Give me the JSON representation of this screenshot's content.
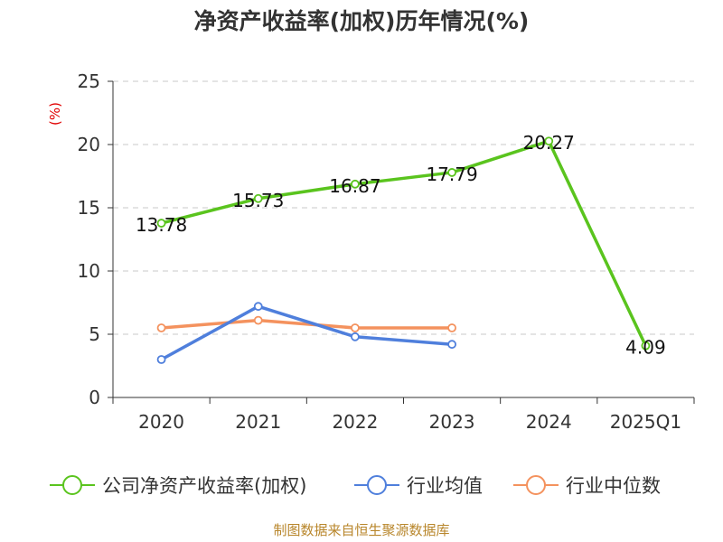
{
  "chart_data": {
    "type": "line",
    "title": "净资产收益率(加权)历年情况(%)",
    "ylabel": "(%)",
    "xlabel": "",
    "categories": [
      "2020",
      "2021",
      "2022",
      "2023",
      "2024",
      "2025Q1"
    ],
    "ylim": [
      0,
      25
    ],
    "yticks": [
      0,
      5,
      10,
      15,
      20,
      25
    ],
    "grid": true,
    "legend_position": "bottom",
    "series": [
      {
        "name": "公司净资产收益率(加权)",
        "color": "#5ac41e",
        "values": [
          13.78,
          15.73,
          16.87,
          17.79,
          20.27,
          4.09
        ],
        "labels": [
          "13.78",
          "15.73",
          "16.87",
          "17.79",
          "20.27",
          "4.09"
        ]
      },
      {
        "name": "行业均值",
        "color": "#4f7fdc",
        "values": [
          3.0,
          7.2,
          4.8,
          4.2,
          null,
          null
        ]
      },
      {
        "name": "行业中位数",
        "color": "#f4925e",
        "values": [
          5.5,
          6.1,
          5.5,
          5.5,
          null,
          null
        ]
      }
    ]
  },
  "footer": {
    "source": "制图数据来自恒生聚源数据库"
  }
}
